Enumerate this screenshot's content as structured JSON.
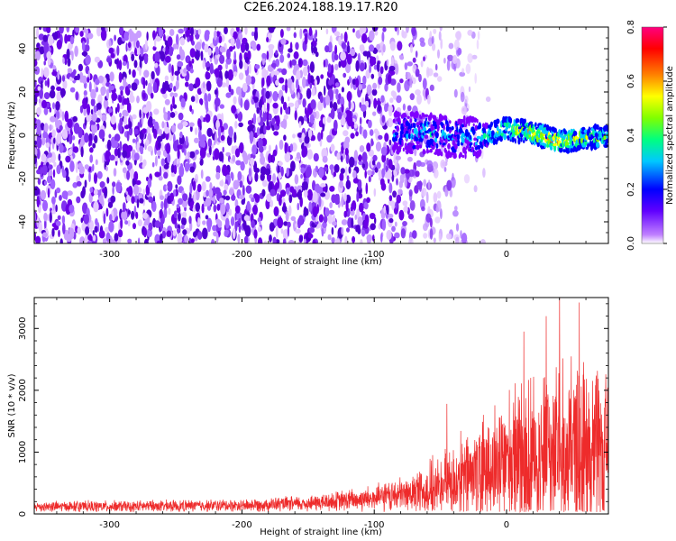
{
  "title": "C2E6.2024.188.19.17.R20",
  "colors": {
    "snr_line": "#ee2b2b",
    "spectro_low": "#e6ccff",
    "spectro_mid": "#6a00e6",
    "spectro_high": "#ff0000"
  },
  "chart_data": [
    {
      "type": "heatmap",
      "name": "spectrogram",
      "title": "",
      "xlabel": "Height of straight line (km)",
      "ylabel": "Frequency (Hz)",
      "xlim": [
        -357,
        77
      ],
      "ylim": [
        -50,
        50
      ],
      "xticks": [
        -300,
        -200,
        -100,
        0
      ],
      "yticks": [
        -40,
        -20,
        0,
        20,
        40
      ],
      "x_tick_labels": [
        "-300",
        "-200",
        "-100",
        "0"
      ],
      "y_tick_labels": [
        "-40",
        "-20",
        "0",
        "20",
        "40"
      ],
      "colorbar": {
        "label": "Normalized spectral amplitude",
        "range": [
          0,
          0.8
        ],
        "ticks": [
          "0.0",
          "0.2",
          "0.4",
          "0.6",
          "0.8"
        ],
        "colormap": [
          "#ffffff",
          "#8000ff",
          "#0000ff",
          "#00c8ff",
          "#00ff80",
          "#80ff00",
          "#ffff00",
          "#ff8000",
          "#ff0000",
          "#ff0080"
        ]
      },
      "features": {
        "noise_region_x": [
          -357,
          -95
        ],
        "noise_amplitude": 0.15,
        "fade_region_x": [
          -95,
          -20
        ],
        "signal_track": {
          "x": [
            -85,
            -60,
            -40,
            -20,
            0,
            20,
            40,
            60,
            77
          ],
          "freq": [
            1,
            1,
            -1,
            -1,
            3,
            1,
            -3,
            -1,
            -1
          ],
          "peak_amplitude": [
            0.3,
            0.35,
            0.3,
            0.4,
            0.6,
            0.7,
            0.8,
            0.6,
            0.5
          ]
        }
      }
    },
    {
      "type": "line",
      "name": "snr",
      "title": "",
      "xlabel": "Height of straight line (km)",
      "ylabel": "SNR (10 * v/v)",
      "xlim": [
        -357,
        77
      ],
      "ylim": [
        0,
        3500
      ],
      "xticks": [
        -300,
        -200,
        -100,
        0
      ],
      "yticks": [
        0,
        1000,
        2000,
        3000
      ],
      "x_tick_labels": [
        "-300",
        "-200",
        "-100",
        "0"
      ],
      "y_tick_labels": [
        "0",
        "1000",
        "2000",
        "3000"
      ],
      "envelope": {
        "x": [
          -357,
          -300,
          -250,
          -200,
          -150,
          -100,
          -75,
          -50,
          -25,
          0,
          25,
          50,
          77
        ],
        "baseline": [
          120,
          120,
          130,
          140,
          170,
          250,
          320,
          450,
          650,
          850,
          1000,
          1050,
          1000
        ],
        "spread": [
          100,
          110,
          110,
          120,
          150,
          250,
          350,
          600,
          900,
          1300,
          1600,
          1700,
          1500
        ]
      },
      "peaks": [
        {
          "x": -45,
          "y": 1780
        },
        {
          "x": 13,
          "y": 2950
        },
        {
          "x": 40,
          "y": 3500
        },
        {
          "x": 55,
          "y": 3420
        },
        {
          "x": 30,
          "y": 3200
        }
      ]
    }
  ]
}
